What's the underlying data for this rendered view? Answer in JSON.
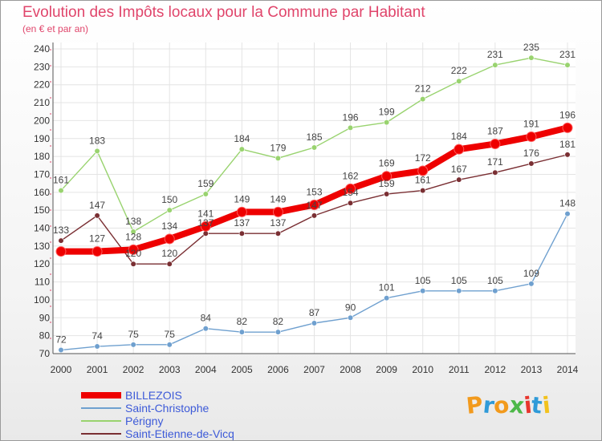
{
  "title": "Evolution des Impôts locaux pour la Commune par Habitant",
  "subtitle": "(en € et par an)",
  "chart_data": {
    "type": "line",
    "x": [
      "2000",
      "2001",
      "2002",
      "2003",
      "2004",
      "2005",
      "2006",
      "2007",
      "2008",
      "2009",
      "2010",
      "2011",
      "2012",
      "2013",
      "2014"
    ],
    "ylim": [
      70,
      240
    ],
    "yticks": [
      70,
      80,
      90,
      100,
      110,
      120,
      130,
      140,
      150,
      160,
      170,
      180,
      190,
      200,
      210,
      220,
      230,
      240
    ],
    "grid": true,
    "legend_position": "bottom-left",
    "series": [
      {
        "name": "BILLEZOIS",
        "color": "#ee0000",
        "values": [
          127,
          127,
          128,
          134,
          141,
          149,
          149,
          153,
          162,
          169,
          172,
          184,
          187,
          191,
          196
        ],
        "labels": [
          "",
          "127",
          "128",
          "134",
          "141",
          "149",
          "149",
          "153",
          "162",
          "169",
          "172",
          "184",
          "187",
          "191",
          "196"
        ]
      },
      {
        "name": "Saint-Christophe",
        "color": "#6fa0cf",
        "values": [
          72,
          74,
          75,
          75,
          84,
          82,
          82,
          87,
          90,
          101,
          105,
          105,
          105,
          109,
          148
        ],
        "labels": [
          "72",
          "74",
          "75",
          "75",
          "84",
          "82",
          "82",
          "87",
          "90",
          "101",
          "105",
          "105",
          "105",
          "109",
          "148"
        ]
      },
      {
        "name": "Périgny",
        "color": "#99d36f",
        "values": [
          161,
          183,
          138,
          150,
          159,
          184,
          179,
          185,
          196,
          199,
          212,
          222,
          231,
          235,
          231
        ],
        "labels": [
          "161",
          "183",
          "138",
          "150",
          "159",
          "184",
          "179",
          "185",
          "196",
          "199",
          "212",
          "222",
          "231",
          "235",
          "231"
        ]
      },
      {
        "name": "Saint-Etienne-de-Vicq",
        "color": "#7a2f33",
        "values": [
          133,
          147,
          120,
          120,
          137,
          137,
          137,
          147,
          154,
          159,
          161,
          167,
          171,
          176,
          181
        ],
        "labels": [
          "133",
          "147",
          "120",
          "120",
          "137",
          "137",
          "137",
          "147",
          "154",
          "159",
          "161",
          "167",
          "171",
          "176",
          "181"
        ]
      }
    ]
  },
  "logo": {
    "letters": [
      "P",
      "r",
      "o",
      "x",
      "i",
      "t",
      "i"
    ],
    "colors": [
      "#f29a1d",
      "#2f9ad8",
      "#f29a1d",
      "#4db848",
      "#e8362e",
      "#2f9ad8",
      "#f2c21d"
    ]
  }
}
